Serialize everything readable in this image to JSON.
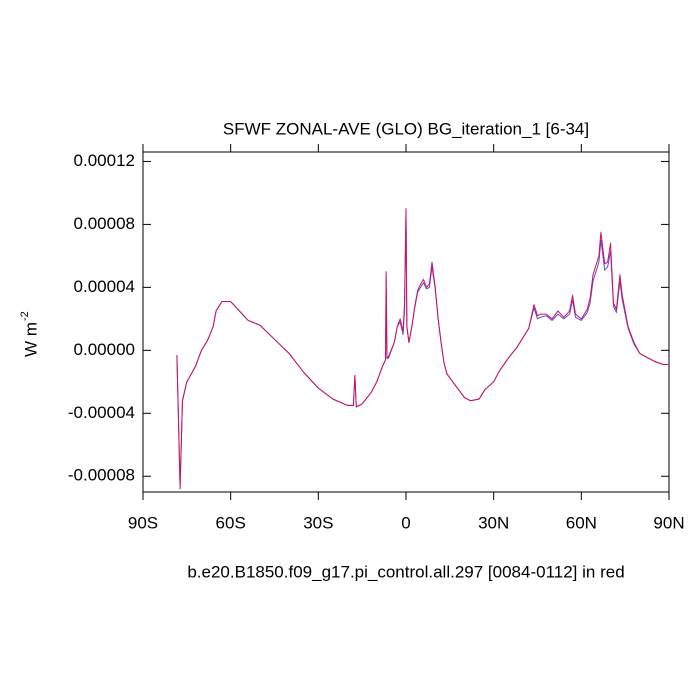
{
  "chart_data": {
    "type": "line",
    "title": "SFWF ZONAL-AVE (GLO) BG_iteration_1 [6-34]",
    "caption": "b.e20.B1850.f09_g17.pi_control.all.297 [0084-0112] in red",
    "y_label": "W m",
    "y_label_sup": "-2",
    "x": [
      -78.4,
      -77.3,
      -76.5,
      -75,
      -72,
      -70,
      -68,
      -66,
      -65,
      -63,
      -60,
      -57,
      -54,
      -50,
      -45,
      -40,
      -35,
      -30,
      -25,
      -20,
      -18,
      -17.5,
      -17,
      -15,
      -12,
      -10,
      -8,
      -7,
      -6.8,
      -6.5,
      -6,
      -4,
      -3,
      -2,
      -1,
      -0.5,
      0,
      0.3,
      1,
      2,
      3,
      4,
      5,
      6,
      7,
      8,
      8.9,
      10,
      11,
      12,
      13,
      14,
      16,
      18,
      20,
      22,
      25,
      27,
      30,
      32,
      35,
      38,
      40,
      42,
      43.8,
      45,
      46,
      48,
      50,
      52,
      54,
      56,
      57,
      58,
      60,
      62,
      63,
      64,
      66,
      66.7,
      68,
      69,
      70,
      71,
      72,
      73.2,
      74,
      75,
      76,
      78,
      80,
      82,
      85,
      88,
      90
    ],
    "series": [
      {
        "color": "#5a4ee0",
        "values": [
          -3e-06,
          -8.6e-05,
          -3.2e-05,
          -2e-05,
          -1e-05,
          0,
          6e-06,
          1.5e-05,
          2.5e-05,
          3.1e-05,
          3.1e-05,
          2.5e-05,
          1.9e-05,
          1.6e-05,
          7e-06,
          -2e-06,
          -1.4e-05,
          -2.4e-05,
          -3.1e-05,
          -3.5e-05,
          -3.5e-05,
          -1.6e-05,
          -3.6e-05,
          -3.4e-05,
          -2.7e-05,
          -2e-05,
          -1e-05,
          -6e-06,
          4.5e-05,
          -5e-06,
          -5e-06,
          5e-06,
          1.5e-05,
          1.8e-05,
          1e-05,
          2.6e-05,
          8.6e-05,
          1.5e-05,
          5e-06,
          1.5e-05,
          2.7e-05,
          3.7e-05,
          4e-05,
          4.3e-05,
          3.9e-05,
          4e-05,
          5.3e-05,
          3.9e-05,
          2e-05,
          5e-06,
          -8e-06,
          -1.5e-05,
          -2e-05,
          -2.5e-05,
          -3e-05,
          -3.2e-05,
          -3.1e-05,
          -2.5e-05,
          -2e-05,
          -1.3e-05,
          -5e-06,
          2e-06,
          8e-06,
          1.4e-05,
          2.7e-05,
          2e-05,
          2.1e-05,
          2.2e-05,
          1.9e-05,
          2.3e-05,
          2e-05,
          2.3e-05,
          3.2e-05,
          2.1e-05,
          1.9e-05,
          2.4e-05,
          3e-05,
          4.4e-05,
          5.6e-05,
          7e-05,
          5.1e-05,
          5.3e-05,
          6.3e-05,
          2.8e-05,
          2.4e-05,
          4.4e-05,
          3.2e-05,
          2.3e-05,
          1.4e-05,
          4e-06,
          -2e-06,
          -4e-06,
          -7e-06,
          -9e-06,
          -9e-06
        ]
      },
      {
        "color": "#d0105a",
        "values": [
          -3e-06,
          -8.8e-05,
          -3.2e-05,
          -2e-05,
          -1e-05,
          0,
          6e-06,
          1.5e-05,
          2.5e-05,
          3.1e-05,
          3.1e-05,
          2.5e-05,
          1.9e-05,
          1.6e-05,
          7e-06,
          -2e-06,
          -1.4e-05,
          -2.4e-05,
          -3.1e-05,
          -3.5e-05,
          -3.5e-05,
          -1.6e-05,
          -3.6e-05,
          -3.4e-05,
          -2.7e-05,
          -2e-05,
          -1e-05,
          -6e-06,
          5e-05,
          -5e-06,
          -4e-06,
          5e-06,
          1.5e-05,
          2e-05,
          1.2e-05,
          3e-05,
          9e-05,
          1.5e-05,
          5e-06,
          1.5e-05,
          2.8e-05,
          3.8e-05,
          4.2e-05,
          4.5e-05,
          4e-05,
          4.2e-05,
          5.6e-05,
          4e-05,
          2e-05,
          5e-06,
          -8e-06,
          -1.5e-05,
          -2e-05,
          -2.5e-05,
          -3e-05,
          -3.2e-05,
          -3.1e-05,
          -2.5e-05,
          -2e-05,
          -1.3e-05,
          -5e-06,
          2e-06,
          8e-06,
          1.4e-05,
          2.9e-05,
          2.2e-05,
          2.3e-05,
          2.3e-05,
          2e-05,
          2.5e-05,
          2.1e-05,
          2.5e-05,
          3.5e-05,
          2.3e-05,
          2e-05,
          2.6e-05,
          3.3e-05,
          4.8e-05,
          6e-05,
          7.5e-05,
          5.5e-05,
          5.6e-05,
          6.8e-05,
          3e-05,
          2.6e-05,
          4.8e-05,
          3.5e-05,
          2.5e-05,
          1.5e-05,
          5e-06,
          -2e-06,
          -4e-06,
          -7e-06,
          -9e-06,
          -9e-06
        ]
      }
    ],
    "xlim": [
      -90,
      90
    ],
    "xticks": [
      {
        "value": -90,
        "label": "90S"
      },
      {
        "value": -60,
        "label": "60S"
      },
      {
        "value": -30,
        "label": "30S"
      },
      0,
      {
        "value": 30,
        "label": "30N"
      },
      {
        "value": 60,
        "label": "60N"
      },
      {
        "value": 90,
        "label": "90N"
      }
    ],
    "ylim": [
      -9e-05,
      0.000126
    ],
    "yticks": [
      -8e-05,
      -4e-05,
      {
        "value": 0,
        "label": "0.00000"
      },
      4e-05,
      8e-05,
      0.00012
    ]
  }
}
